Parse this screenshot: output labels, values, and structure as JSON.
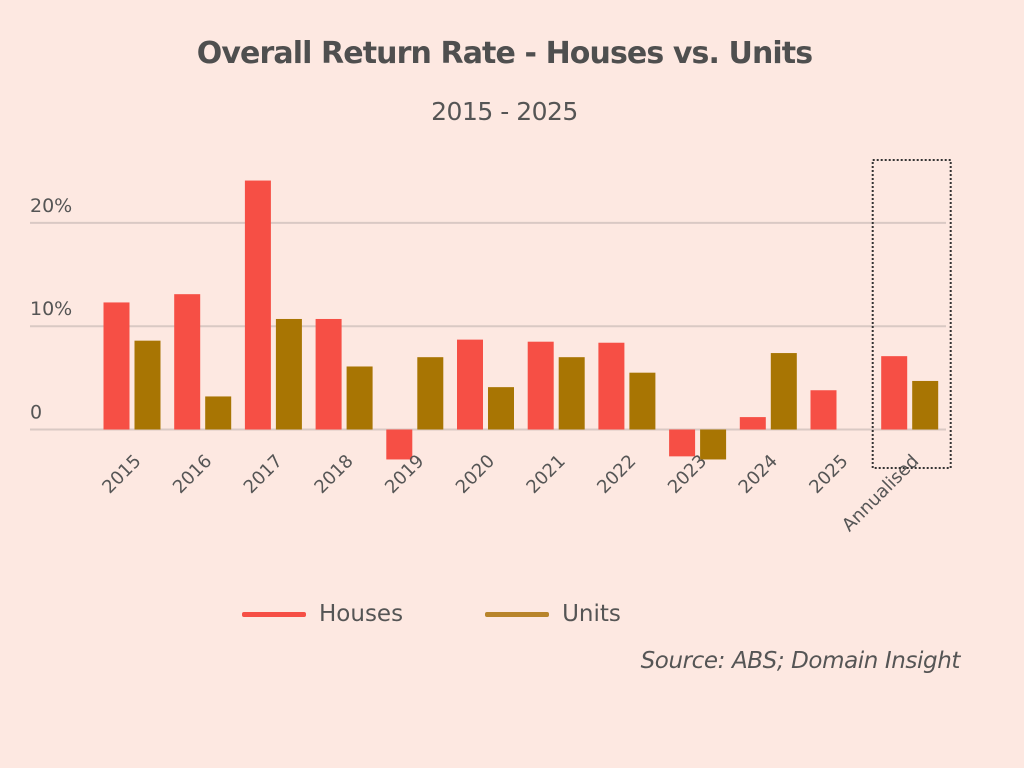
{
  "chart_data": {
    "type": "bar",
    "title": "Overall Return Rate - Houses vs. Units",
    "subtitle": "2015 - 2025",
    "xlabel": "",
    "ylabel": "",
    "categories": [
      "2015",
      "2016",
      "2017",
      "2018",
      "2019",
      "2020",
      "2021",
      "2022",
      "2023",
      "2024",
      "2025",
      "Annualised"
    ],
    "series": [
      {
        "name": "Houses",
        "color": "#f64f45",
        "values": [
          12.3,
          13.1,
          24.1,
          10.7,
          -2.9,
          8.7,
          8.5,
          8.4,
          -2.6,
          1.2,
          3.8,
          7.1
        ]
      },
      {
        "name": "Units",
        "color": "#a87503",
        "values": [
          8.6,
          3.2,
          10.7,
          6.1,
          7.0,
          4.1,
          7.0,
          5.5,
          -2.9,
          7.4,
          null,
          4.7
        ]
      }
    ],
    "yticks": [
      {
        "value": 0,
        "label": "0"
      },
      {
        "value": 10,
        "label": "10%"
      },
      {
        "value": 20,
        "label": "20%"
      }
    ],
    "ylim": [
      -4,
      26
    ],
    "grid": true,
    "legend_position": "bottom",
    "highlight_category": "Annualised",
    "source": "Source: ABS; Domain Insight"
  }
}
